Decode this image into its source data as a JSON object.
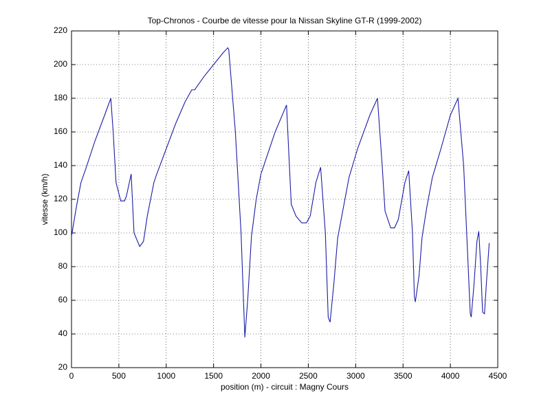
{
  "chart_data": {
    "type": "line",
    "title": "Top-Chronos - Courbe de vitesse pour la Nissan Skyline GT-R (1999-2002)",
    "x_label": "position (m) - circuit : Magny Cours",
    "y_label": "vitesse (km/h)",
    "x": [
      0,
      50,
      100,
      150,
      250,
      350,
      415,
      440,
      470,
      520,
      560,
      580,
      630,
      660,
      720,
      760,
      800,
      870,
      900,
      1000,
      1100,
      1200,
      1270,
      1300,
      1400,
      1500,
      1600,
      1650,
      1660,
      1730,
      1790,
      1830,
      1860,
      1900,
      1950,
      2000,
      2150,
      2270,
      2320,
      2370,
      2430,
      2480,
      2520,
      2580,
      2630,
      2680,
      2710,
      2730,
      2770,
      2810,
      2870,
      2930,
      3020,
      3150,
      3230,
      3280,
      3310,
      3370,
      3410,
      3450,
      3520,
      3560,
      3600,
      3620,
      3630,
      3670,
      3700,
      3750,
      3810,
      3900,
      4000,
      4080,
      4140,
      4180,
      4210,
      4220,
      4250,
      4280,
      4300,
      4320,
      4340,
      4360,
      4380,
      4410
    ],
    "values": [
      98,
      115,
      130,
      138,
      155,
      170,
      180,
      160,
      130,
      119,
      119,
      122,
      135,
      100,
      92,
      95,
      110,
      130,
      135,
      150,
      165,
      178,
      185,
      185,
      193,
      200,
      207,
      210,
      209,
      160,
      100,
      38,
      60,
      98,
      120,
      135,
      160,
      176,
      117,
      110,
      106,
      106,
      110,
      130,
      139,
      100,
      50,
      47,
      70,
      97,
      115,
      133,
      150,
      170,
      180,
      140,
      113,
      103,
      103,
      108,
      130,
      137,
      100,
      62,
      59,
      75,
      97,
      115,
      133,
      150,
      170,
      180,
      140,
      90,
      52,
      50,
      70,
      95,
      101,
      80,
      53,
      52,
      70,
      94
    ],
    "color": "#1a1aa6",
    "xlim": [
      0,
      4500
    ],
    "ylim": [
      20,
      220
    ],
    "xticks": [
      0,
      500,
      1000,
      1500,
      2000,
      2500,
      3000,
      3500,
      4000,
      4500
    ],
    "yticks": [
      20,
      40,
      60,
      80,
      100,
      120,
      140,
      160,
      180,
      200,
      220
    ],
    "grid": true
  }
}
